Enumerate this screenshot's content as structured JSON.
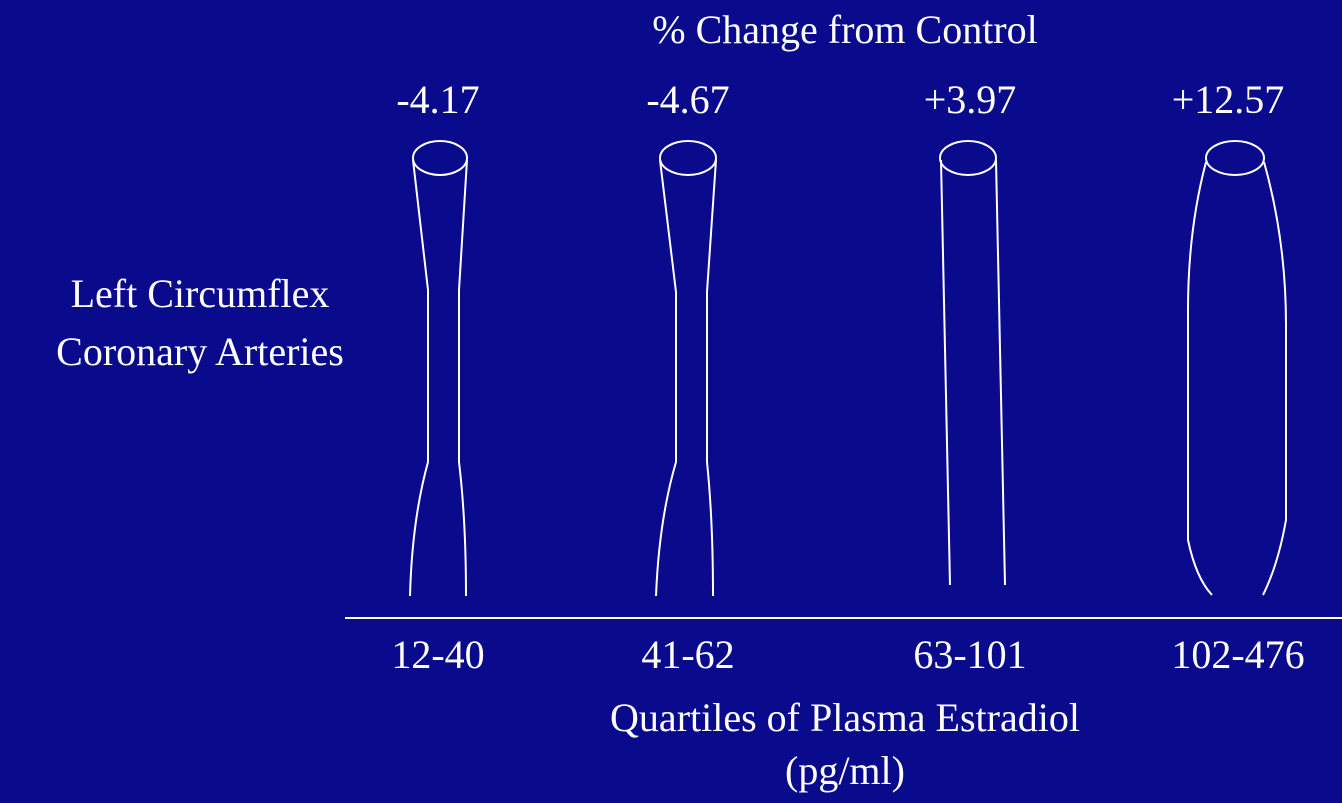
{
  "title": "% Change from Control",
  "side_label": [
    "Left Circumflex",
    "Coronary Arteries"
  ],
  "columns": [
    {
      "change": "-4.17",
      "range": "12-40"
    },
    {
      "change": "-4.67",
      "range": "41-62"
    },
    {
      "change": "+3.97",
      "range": "63-101"
    },
    {
      "change": "+12.57",
      "range": "102-476"
    }
  ],
  "x_label": [
    "Quartiles of Plasma Estradiol",
    "(pg/ml)"
  ]
}
